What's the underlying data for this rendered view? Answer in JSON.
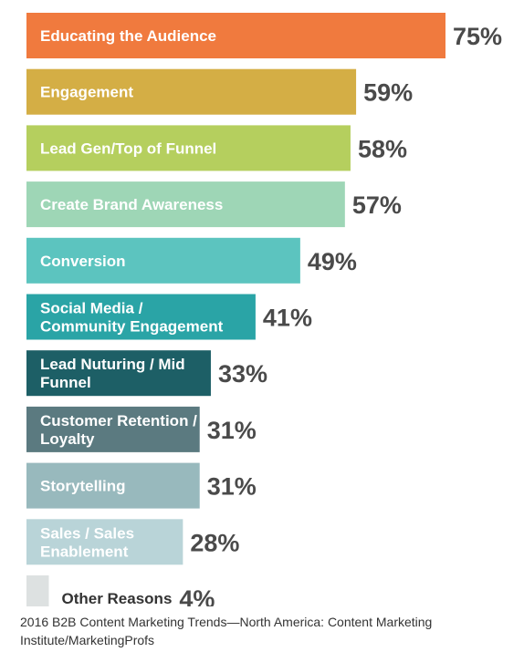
{
  "chart_data": {
    "type": "bar",
    "orientation": "horizontal",
    "categories": [
      "Educating the Audience",
      "Engagement",
      "Lead Gen/Top of Funnel",
      "Create Brand Awareness",
      "Conversion",
      "Social Media / Community Engagement",
      "Lead Nuturing / Mid Funnel",
      "Customer Retention / Loyalty",
      "Storytelling",
      "Sales / Sales Enablement",
      "Other Reasons"
    ],
    "category_lines": [
      [
        "Educating the Audience"
      ],
      [
        "Engagement"
      ],
      [
        "Lead Gen/Top of Funnel"
      ],
      [
        "Create Brand Awareness"
      ],
      [
        "Conversion"
      ],
      [
        "Social Media /",
        "Community Engagement"
      ],
      [
        "Lead Nuturing / Mid",
        "Funnel"
      ],
      [
        "Customer Retention /",
        "Loyalty"
      ],
      [
        "Storytelling"
      ],
      [
        "Sales / Sales",
        "Enablement"
      ],
      [
        "Other Reasons"
      ]
    ],
    "values": [
      75,
      59,
      58,
      57,
      49,
      41,
      33,
      31,
      31,
      28,
      4
    ],
    "value_labels": [
      "75%",
      "59%",
      "58%",
      "57%",
      "49%",
      "41%",
      "33%",
      "31%",
      "31%",
      "28%",
      "4%"
    ],
    "colors": [
      "#f07a3e",
      "#d4ae45",
      "#b5cf5e",
      "#9ed6b6",
      "#5cc4bf",
      "#2aa4a6",
      "#1d5f66",
      "#5b7a80",
      "#98b9bd",
      "#b9d4d8",
      "#dde1e1"
    ],
    "label_colors": [
      "#ffffff",
      "#ffffff",
      "#ffffff",
      "#ffffff",
      "#ffffff",
      "#ffffff",
      "#ffffff",
      "#ffffff",
      "#ffffff",
      "#ffffff",
      "#333333"
    ],
    "xlim": [
      0,
      100
    ],
    "grid": false,
    "legend": "none"
  },
  "source": "2016 B2B Content Marketing Trends—North America: Content Marketing Institute/MarketingProfs"
}
